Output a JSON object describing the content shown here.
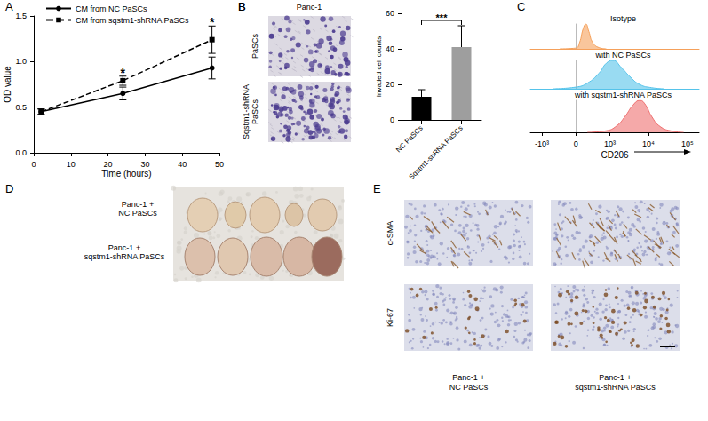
{
  "chart_data": [
    {
      "type": "line",
      "panel_label": "A",
      "xlabel": "Time (hours)",
      "ylabel": "OD value",
      "x": [
        2,
        24,
        48
      ],
      "xlim": [
        0,
        50
      ],
      "xticks": [
        0,
        10,
        20,
        30,
        40,
        50
      ],
      "ylim": [
        0,
        1.5
      ],
      "yticks": [
        {
          "value": 0,
          "label": "0.0"
        },
        0.5,
        {
          "value": 1,
          "label": "1.0"
        },
        1.5
      ],
      "grid": false,
      "legend": "upper left",
      "series": [
        {
          "name": "CM from NC PaSCs",
          "color": "#000000",
          "marker": "circle",
          "line_style": "solid",
          "values": [
            0.45,
            0.65,
            0.93
          ],
          "errors": [
            0.03,
            0.07,
            0.12
          ]
        },
        {
          "name": "CM from sqstm1-shRNA PaSCs",
          "color": "#000000",
          "marker": "square",
          "line_style": "dashed",
          "values": [
            0.45,
            0.79,
            1.24
          ],
          "errors": [
            0.03,
            0.05,
            0.15
          ]
        }
      ],
      "annotations": [
        {
          "text": "*",
          "x": 24,
          "y": 0.88
        },
        {
          "text": "*",
          "x": 48,
          "y": 1.43
        }
      ]
    },
    {
      "type": "bar",
      "panel_label": "B",
      "ylabel": "Invaded cell counts",
      "categories": [
        "NC PaSCs",
        "Sqstm1-shRNA PaSCs"
      ],
      "values": [
        13,
        41
      ],
      "errors": [
        4,
        12
      ],
      "colors": [
        "#000000",
        "#9e9e9e"
      ],
      "ylim": [
        0,
        60
      ],
      "yticks": [
        0,
        20,
        40,
        60
      ],
      "grid": false,
      "annotations": [
        {
          "text": "***",
          "from": 0,
          "to": 1,
          "y": 56
        }
      ]
    },
    {
      "type": "area",
      "panel_label": "C",
      "xlabel": "CD206",
      "xlim": [
        -2000,
        200000
      ],
      "xticks": [
        {
          "value": -1000,
          "label": "-10³"
        },
        0,
        {
          "value": 1000,
          "label": "10³"
        },
        {
          "value": 10000,
          "label": "10⁴"
        },
        {
          "value": 100000,
          "label": "10⁵"
        }
      ],
      "ylim": [
        0,
        100
      ],
      "tick_labels": "x",
      "series": [
        {
          "name": "Isotype",
          "color": "#f5a05a",
          "x": [
            -300,
            0,
            60,
            120,
            170,
            230,
            320,
            500,
            800
          ],
          "values": [
            0,
            3,
            25,
            80,
            100,
            70,
            25,
            5,
            0
          ]
        },
        {
          "name": "with NC PaSCs",
          "color": "#55c3ea",
          "x": [
            -500,
            0,
            200,
            500,
            800,
            1200,
            2000,
            3500,
            6000,
            12000,
            25000
          ],
          "values": [
            0,
            6,
            20,
            55,
            90,
            100,
            75,
            40,
            15,
            4,
            0
          ]
        },
        {
          "name": "with sqstm1-shRNA PaSCs",
          "color": "#ee6f6f",
          "x": [
            200,
            800,
            1500,
            2500,
            4000,
            6000,
            8500,
            12000,
            20000,
            40000,
            80000
          ],
          "values": [
            0,
            5,
            20,
            50,
            85,
            100,
            85,
            50,
            18,
            4,
            0
          ]
        }
      ]
    }
  ],
  "panel_B_images": {
    "panel_label": "B",
    "title": "Panc-1",
    "row_labels": [
      [
        "PaSCs"
      ],
      [
        "Sqstm1-shRNA",
        "PaSCs"
      ]
    ]
  },
  "panel_D_photo": {
    "panel_label": "D",
    "row_labels": [
      [
        "Panc-1 +",
        "NC PaSCs"
      ],
      [
        "Panc-1 +",
        "sqstm1-shRNA PaSCs"
      ]
    ]
  },
  "panel_E_images": {
    "panel_label": "E",
    "row_labels": [
      "α-SMA",
      "Ki-67"
    ],
    "column_labels": [
      [
        "Panc-1 +",
        "NC PaSCs"
      ],
      [
        "Panc-1 +",
        "sqstm1-shRNA PaSCs"
      ]
    ]
  }
}
